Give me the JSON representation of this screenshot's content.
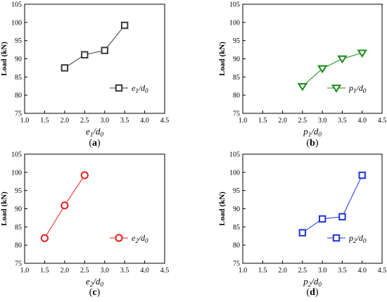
{
  "chart_data": [
    {
      "type": "line",
      "panel": "a",
      "panel_label": "a",
      "xlabel": "e1/d0",
      "ylabel": "Load (kN)",
      "xlim": [
        1.0,
        4.5
      ],
      "ylim": [
        75,
        105
      ],
      "xticks": [
        "1.0",
        "1.5",
        "2.0",
        "2.5",
        "3.0",
        "3.5",
        "4.0",
        "4.5"
      ],
      "yticks": [
        "75",
        "80",
        "85",
        "90",
        "95",
        "100",
        "105"
      ],
      "legend_position": "lower-right",
      "series": [
        {
          "name": "e1/d0",
          "marker": "square",
          "color": "#3a3a3a",
          "x": [
            2.0,
            2.5,
            3.0,
            3.5
          ],
          "y": [
            87.5,
            91.1,
            92.3,
            99.2
          ]
        }
      ]
    },
    {
      "type": "line",
      "panel": "b",
      "panel_label": "b",
      "xlabel": "p1/d0",
      "ylabel": "Load (kN)",
      "xlim": [
        1.0,
        4.5
      ],
      "ylim": [
        75,
        105
      ],
      "xticks": [
        "1.0",
        "1.5",
        "2.0",
        "2.5",
        "3.0",
        "3.5",
        "4.0",
        "4.5"
      ],
      "yticks": [
        "75",
        "80",
        "85",
        "90",
        "95",
        "100",
        "105"
      ],
      "legend_position": "lower-right",
      "series": [
        {
          "name": "p1/d0",
          "marker": "triangle-down",
          "color": "#1a8a1a",
          "x": [
            2.5,
            3.0,
            3.5,
            4.0
          ],
          "y": [
            82.4,
            87.3,
            90.0,
            91.6
          ]
        }
      ]
    },
    {
      "type": "line",
      "panel": "c",
      "panel_label": "c",
      "xlabel": "e2/d0",
      "ylabel": "Load (kN)",
      "xlim": [
        1.0,
        4.5
      ],
      "ylim": [
        75,
        105
      ],
      "xticks": [
        "1.0",
        "1.5",
        "2.0",
        "2.5",
        "3.0",
        "3.5",
        "4.0",
        "4.5"
      ],
      "yticks": [
        "75",
        "80",
        "85",
        "90",
        "95",
        "100",
        "105"
      ],
      "legend_position": "lower-right",
      "series": [
        {
          "name": "e2/d0",
          "marker": "circle",
          "color": "#e8201e",
          "x": [
            1.5,
            2.0,
            2.5
          ],
          "y": [
            81.9,
            90.9,
            99.2
          ]
        }
      ]
    },
    {
      "type": "line",
      "panel": "d",
      "panel_label": "d",
      "xlabel": "p2/d0",
      "ylabel": "Load (kN)",
      "xlim": [
        1.0,
        4.5
      ],
      "ylim": [
        75,
        105
      ],
      "xticks": [
        "1.0",
        "1.5",
        "2.0",
        "2.5",
        "3.0",
        "3.5",
        "4.0",
        "4.5"
      ],
      "yticks": [
        "75",
        "80",
        "85",
        "90",
        "95",
        "100",
        "105"
      ],
      "legend_position": "lower-right",
      "series": [
        {
          "name": "p2/d0",
          "marker": "square",
          "color": "#1f33d6",
          "x": [
            2.5,
            3.0,
            3.5,
            4.0
          ],
          "y": [
            83.4,
            87.2,
            87.8,
            99.2
          ]
        }
      ]
    }
  ]
}
